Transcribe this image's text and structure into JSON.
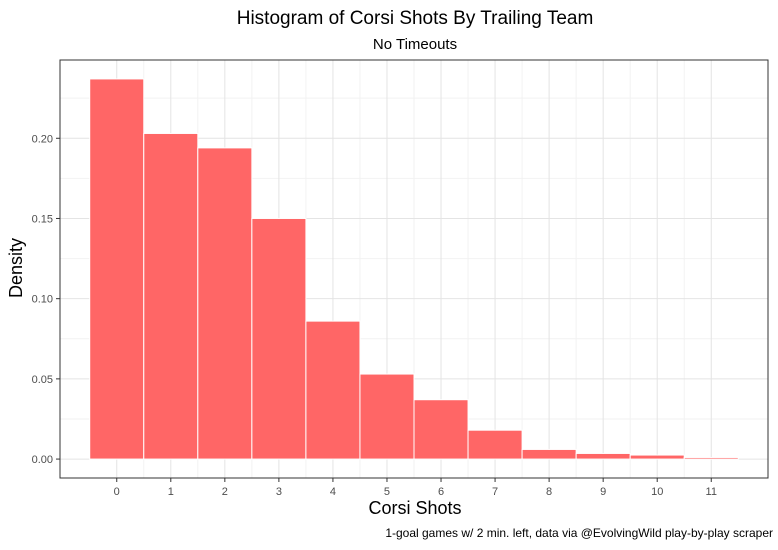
{
  "chart_data": {
    "type": "bar",
    "title": "Histogram of Corsi Shots By Trailing Team",
    "subtitle": "No Timeouts",
    "xlabel": "Corsi Shots",
    "ylabel": "Density",
    "caption": "1-goal games w/ 2 min. left, data via @EvolvingWild play-by-play scraper",
    "categories": [
      "0",
      "1",
      "2",
      "3",
      "4",
      "5",
      "6",
      "7",
      "8",
      "9",
      "10",
      "11"
    ],
    "x": [
      0,
      1,
      2,
      3,
      4,
      5,
      6,
      7,
      8,
      9,
      10,
      11
    ],
    "values": [
      0.237,
      0.203,
      0.194,
      0.15,
      0.086,
      0.053,
      0.037,
      0.018,
      0.006,
      0.0035,
      0.0025,
      0.001
    ],
    "xlim": [
      -1.05,
      12.05
    ],
    "ylim": [
      -0.0118,
      0.2488
    ],
    "yticks": [
      0.0,
      0.05,
      0.1,
      0.15,
      0.2
    ],
    "ytick_labels": [
      "0.00",
      "0.05",
      "0.10",
      "0.15",
      "0.20"
    ],
    "grid": true,
    "colors": {
      "bar_fill": "#ff6666",
      "bar_stroke": "#ffffff",
      "grid_major": "#e4e4e4",
      "grid_minor": "#f2f2f2",
      "panel_border": "#333333",
      "text": "#000000",
      "tick_text": "#4d4d4d"
    }
  }
}
